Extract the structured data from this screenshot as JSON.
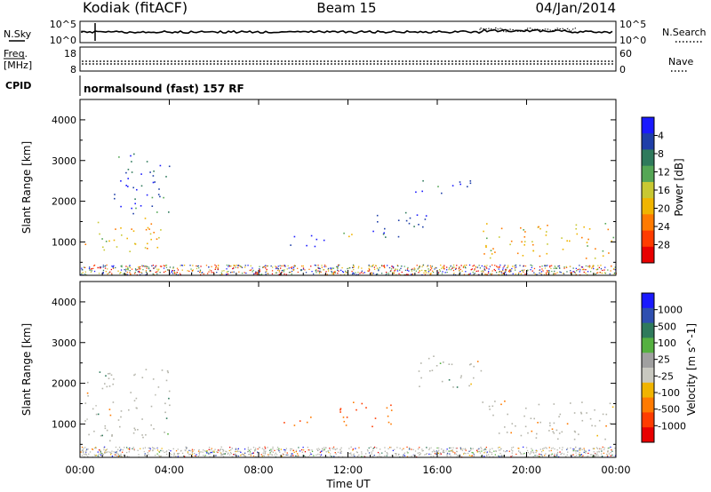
{
  "header": {
    "station": "Kodiak (fitACF)",
    "beam": "Beam 15",
    "date": "04/Jan/2014"
  },
  "top_panels": {
    "nsky_label": "N.Sky",
    "nsearch_label": "N.Search",
    "noise_ticks": [
      "10^5",
      "10^0"
    ],
    "freq_label_1": "Freq.",
    "freq_label_2": "[MHz]",
    "freq_ticks": [
      "18",
      "8"
    ],
    "nave_label": "Nave",
    "nave_ticks": [
      "60",
      "0"
    ],
    "cpid_label": "CPID",
    "cpid_value": "normalsound (fast) 157 RF"
  },
  "colors": {
    "power_scale": [
      "#1a1aff",
      "#1f3fa8",
      "#2f7a5c",
      "#55a655",
      "#c8c832",
      "#f0b400",
      "#ff7a00",
      "#ff3c00",
      "#e80000"
    ],
    "velocity_scale": [
      "#1a1aff",
      "#2f4fb0",
      "#2f7a5c",
      "#55b040",
      "#a0a0a0",
      "#c8c8c0",
      "#f0b400",
      "#ff7a00",
      "#ff3c00",
      "#e80000"
    ],
    "ground_scatter": "#b4b4aa"
  },
  "chart_data": [
    {
      "type": "heatmap",
      "title": "",
      "xlabel": "Time UT",
      "ylabel": "Slant Range [km]",
      "x_ticks": [
        "00:00",
        "04:00",
        "08:00",
        "12:00",
        "16:00",
        "20:00",
        "00:00"
      ],
      "y_ticks": [
        "1000",
        "2000",
        "3000",
        "4000"
      ],
      "ylim": [
        180,
        4500
      ],
      "colorbar_label": "Power [dB]",
      "colorbar_ticks": [
        "4",
        "8",
        "12",
        "16",
        "20",
        "24",
        "28"
      ],
      "grid": false,
      "regions": [
        {
          "x_start": 0.2,
          "x_end": 3.6,
          "y_start": 700,
          "y_end": 1600,
          "level": 28
        },
        {
          "x_start": 1.5,
          "x_end": 4.0,
          "y_start": 1700,
          "y_end": 3200,
          "level": 14
        },
        {
          "x_start": 9.0,
          "x_end": 11.0,
          "y_start": 900,
          "y_end": 1200,
          "level": 8
        },
        {
          "x_start": 11.6,
          "x_end": 12.2,
          "y_start": 800,
          "y_end": 1300,
          "level": 24
        },
        {
          "x_start": 13.0,
          "x_end": 15.5,
          "y_start": 1100,
          "y_end": 1800,
          "level": 12
        },
        {
          "x_start": 15.0,
          "x_end": 17.5,
          "y_start": 2200,
          "y_end": 2600,
          "level": 16
        },
        {
          "x_start": 18.0,
          "x_end": 24.0,
          "y_start": 600,
          "y_end": 1500,
          "level": 28
        }
      ]
    },
    {
      "type": "heatmap",
      "title": "",
      "xlabel": "Time UT",
      "ylabel": "Slant Range [km]",
      "x_ticks": [
        "00:00",
        "04:00",
        "08:00",
        "12:00",
        "16:00",
        "20:00",
        "00:00"
      ],
      "y_ticks": [
        "1000",
        "2000",
        "3000",
        "4000"
      ],
      "ylim": [
        180,
        4500
      ],
      "colorbar_label": "Velocity [m s^-1]",
      "colorbar_ticks": [
        "1000",
        "500",
        "100",
        "25",
        "-25",
        "-100",
        "-500",
        "-1000"
      ],
      "grid": false,
      "regions": [
        {
          "x_start": 0.2,
          "x_end": 4.0,
          "y_start": 600,
          "y_end": 2400,
          "level": 0
        },
        {
          "x_start": 9.0,
          "x_end": 10.5,
          "y_start": 900,
          "y_end": 1200,
          "level": -300
        },
        {
          "x_start": 11.5,
          "x_end": 14.0,
          "y_start": 900,
          "y_end": 1600,
          "level": -300
        },
        {
          "x_start": 15.0,
          "x_end": 18.0,
          "y_start": 1900,
          "y_end": 2700,
          "level": 0
        },
        {
          "x_start": 18.0,
          "x_end": 24.0,
          "y_start": 600,
          "y_end": 1600,
          "level": 0
        }
      ]
    }
  ]
}
